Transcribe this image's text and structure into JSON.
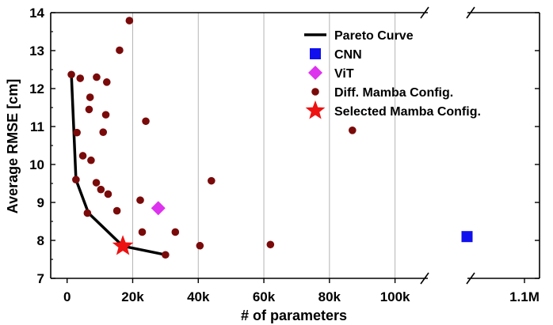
{
  "chart_data": {
    "type": "scatter",
    "title": "",
    "xlabel": "# of parameters",
    "ylabel": "Average RMSE [cm]",
    "xlim": [
      -5000,
      115000
    ],
    "ylim": [
      7,
      14
    ],
    "x_break": {
      "after": 110000,
      "resume_value": 1100000
    },
    "xticks": [
      0,
      20000,
      40000,
      60000,
      80000,
      100000,
      1100000
    ],
    "xtick_labels": [
      "0",
      "20k",
      "40k",
      "60k",
      "80k",
      "100k",
      "1.1M"
    ],
    "yticks": [
      7,
      8,
      9,
      10,
      11,
      12,
      13,
      14
    ],
    "ytick_labels": [
      "7",
      "8",
      "9",
      "10",
      "11",
      "12",
      "13",
      "14"
    ],
    "grid": "vertical",
    "legend_position": "top-right",
    "series": [
      {
        "name": "Pareto Curve",
        "kind": "line",
        "color": "#000000",
        "x": [
          1300,
          2700,
          6500,
          17000,
          30000
        ],
        "y": [
          12.37,
          9.6,
          8.72,
          7.85,
          7.62
        ]
      },
      {
        "name": "CNN",
        "kind": "square",
        "color": "#1010ee",
        "x": [
          1050000
        ],
        "y": [
          8.1
        ]
      },
      {
        "name": "ViT",
        "kind": "diamond",
        "color": "#dd33ee",
        "x": [
          27800
        ],
        "y": [
          8.85
        ]
      },
      {
        "name": "Diff. Mamba Config.",
        "kind": "circle",
        "color": "#7a0a0a",
        "x": [
          1300,
          3000,
          2700,
          4000,
          4800,
          6200,
          6700,
          7300,
          7000,
          9000,
          8900,
          10300,
          11000,
          11800,
          12100,
          12500,
          15200,
          16000,
          19000,
          22300,
          22900,
          24000,
          33000,
          30000,
          40500,
          44000,
          62000,
          87000
        ],
        "y": [
          12.37,
          10.84,
          9.6,
          12.27,
          10.23,
          8.72,
          11.45,
          10.11,
          11.77,
          12.3,
          9.52,
          9.34,
          10.85,
          11.31,
          12.17,
          9.22,
          8.78,
          13.01,
          13.79,
          9.06,
          8.22,
          11.14,
          8.22,
          7.62,
          7.86,
          9.57,
          7.89,
          10.9
        ]
      },
      {
        "name": "Selected Mamba Config.",
        "kind": "star",
        "color": "#ee1111",
        "x": [
          17000
        ],
        "y": [
          7.85
        ]
      }
    ]
  }
}
